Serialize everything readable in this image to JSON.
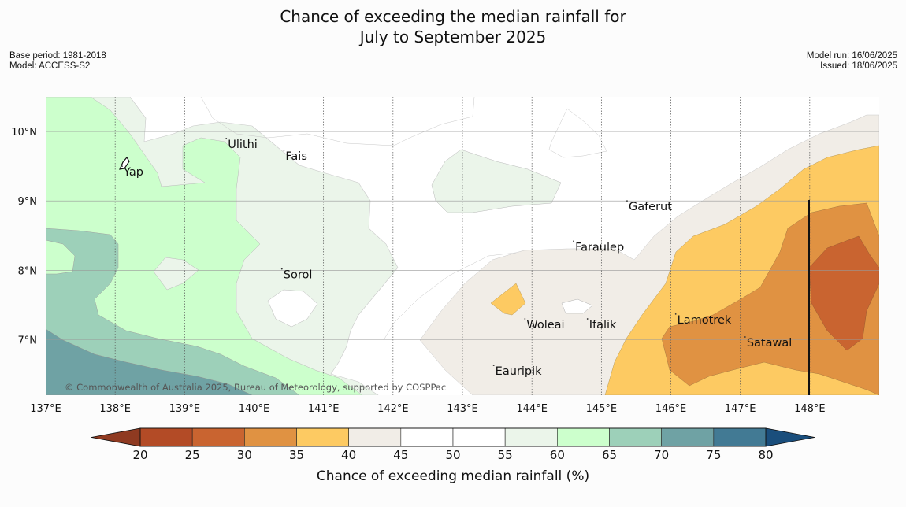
{
  "title": {
    "line1": "Chance of exceeding the median rainfall for",
    "line2": "July to September 2025"
  },
  "meta_left": {
    "base_period": "Base period: 1981-2018",
    "model": "Model: ACCESS-S2"
  },
  "meta_right": {
    "model_run": "Model run: 16/06/2025",
    "issued": "Issued: 18/06/2025"
  },
  "map": {
    "lon_range": [
      137,
      149
    ],
    "lat_range": [
      6.2,
      10.5
    ],
    "lon_ticks": [
      137,
      138,
      139,
      140,
      141,
      142,
      143,
      144,
      145,
      146,
      147,
      148
    ],
    "lon_tick_labels": [
      "137°E",
      "138°E",
      "139°E",
      "140°E",
      "141°E",
      "142°E",
      "143°E",
      "144°E",
      "145°E",
      "146°E",
      "147°E",
      "148°E"
    ],
    "lat_ticks": [
      10,
      9,
      8,
      7
    ],
    "lat_tick_labels": [
      "10°N",
      "9°N",
      "8°N",
      "7°N"
    ],
    "places": [
      {
        "name": "Ulithi",
        "lon": 139.6,
        "lat": 9.9
      },
      {
        "name": "Fais",
        "lon": 140.43,
        "lat": 9.73
      },
      {
        "name": "Yap",
        "lon": 138.1,
        "lat": 9.5
      },
      {
        "name": "Gaferut",
        "lon": 145.37,
        "lat": 9.0
      },
      {
        "name": "Faraulep",
        "lon": 144.6,
        "lat": 8.42
      },
      {
        "name": "Sorol",
        "lon": 140.4,
        "lat": 8.02
      },
      {
        "name": "Lamotrek",
        "lon": 146.07,
        "lat": 7.37
      },
      {
        "name": "Woleai",
        "lon": 143.9,
        "lat": 7.3
      },
      {
        "name": "Ifalik",
        "lon": 144.8,
        "lat": 7.3
      },
      {
        "name": "Satawal",
        "lon": 147.07,
        "lat": 7.04
      },
      {
        "name": "Eauripik",
        "lon": 143.45,
        "lat": 6.63
      }
    ],
    "copyright": "© Commonwealth of Australia 2025, Bureau of Meteorology, supported by COSPPac"
  },
  "colorbar": {
    "label": "Chance of exceeding median rainfall (%)",
    "ticks": [
      "20",
      "25",
      "30",
      "35",
      "40",
      "45",
      "50",
      "55",
      "60",
      "65",
      "70",
      "75",
      "80"
    ],
    "colors": [
      "#b34b26",
      "#c96430",
      "#e09242",
      "#fdca62",
      "#f1ede7",
      "#ffffff",
      "#ffffff",
      "#ebf5ea",
      "#ccffcc",
      "#9dd0b9",
      "#6fa2a4",
      "#427a94"
    ],
    "under_color": "#8f3a21",
    "over_color": "#1a4e7c"
  }
}
